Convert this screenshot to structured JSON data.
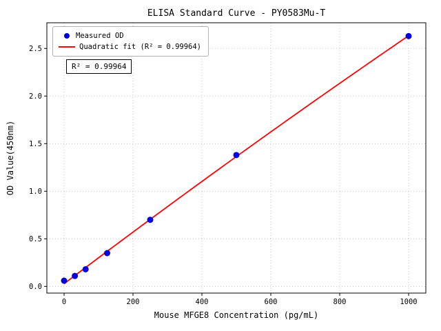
{
  "chart_data": {
    "type": "scatter",
    "title": "ELISA Standard Curve - PY0583Mu-T",
    "xlabel": "Mouse MFGE8 Concentration (pg/mL)",
    "ylabel": "OD Value(450nm)",
    "xlim": [
      -50,
      1050
    ],
    "ylim": [
      -0.07,
      2.77
    ],
    "xticks": [
      0,
      200,
      400,
      600,
      800,
      1000
    ],
    "yticks": [
      0.0,
      0.5,
      1.0,
      1.5,
      2.0,
      2.5
    ],
    "grid": "dotted",
    "series": [
      {
        "name": "Measured OD",
        "type": "scatter",
        "color": "#0000dd",
        "x": [
          0,
          31.25,
          62.5,
          125,
          250,
          500,
          1000
        ],
        "y": [
          0.06,
          0.11,
          0.18,
          0.35,
          0.7,
          1.38,
          2.63
        ]
      },
      {
        "name": "Quadratic fit (R² = 0.99964)",
        "type": "quadratic-fit",
        "color": "#ff0000"
      }
    ],
    "legend": {
      "position": "upper-left",
      "entries": [
        "Measured OD",
        "Quadratic fit (R² = 0.99964)"
      ]
    },
    "annotation": {
      "text": "R² = 0.99964"
    },
    "r_squared": 0.99964,
    "colors": {
      "points": "#0000dd",
      "fit_line": "#ff0000",
      "grid": "#b8b8b8",
      "axis": "#000000"
    }
  }
}
